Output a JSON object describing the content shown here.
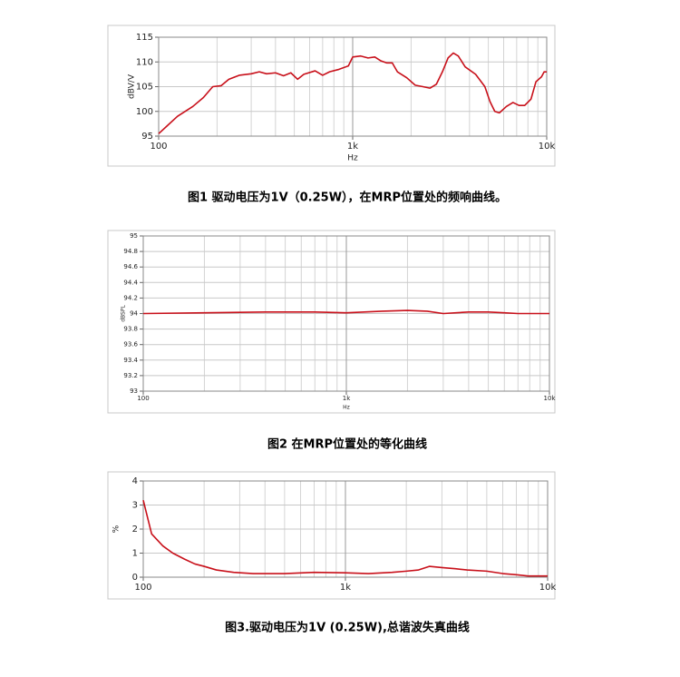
{
  "chart_data": [
    {
      "type": "line",
      "title": "图1 驱动电压为1V（0.25W），在MRP位置处的频响曲线。",
      "y_label": "dBV/V",
      "x_label": "Hz",
      "log_x": true,
      "grid": true,
      "color": "#c8101a",
      "x": [
        100,
        110,
        125,
        150,
        170,
        190,
        210,
        230,
        260,
        300,
        330,
        360,
        400,
        440,
        480,
        520,
        560,
        640,
        700,
        760,
        850,
        950,
        1000,
        1100,
        1200,
        1300,
        1400,
        1500,
        1600,
        1700,
        1900,
        2100,
        2300,
        2500,
        2700,
        2900,
        3100,
        3300,
        3500,
        3800,
        4300,
        4800,
        5100,
        5400,
        5700,
        6200,
        6700,
        7200,
        7700,
        8300,
        8800,
        9400,
        9700,
        10000
      ],
      "values": [
        95.5,
        97,
        99,
        101,
        102.8,
        105,
        105.2,
        106.5,
        107.3,
        107.6,
        108,
        107.6,
        107.8,
        107.2,
        107.8,
        106.5,
        107.5,
        108.2,
        107.3,
        108,
        108.5,
        109.2,
        111,
        111.2,
        110.8,
        111,
        110.2,
        109.8,
        109.8,
        108,
        106.8,
        105.3,
        105,
        104.7,
        105.5,
        108,
        110.8,
        111.8,
        111.2,
        109,
        107.5,
        105,
        102,
        100,
        99.7,
        101,
        101.8,
        101.2,
        101.2,
        102.5,
        106,
        107,
        108,
        108
      ],
      "xlim": [
        100,
        10000
      ],
      "xticks": [
        100,
        {
          "value": 1000,
          "label": "1k"
        },
        {
          "value": 10000,
          "label": "10k"
        }
      ],
      "ylim": [
        95,
        115
      ],
      "yticks": [
        95,
        100,
        105,
        110,
        115
      ]
    },
    {
      "type": "line",
      "title": "图2 在MRP位置处的等化曲线",
      "y_label": "dBSPL",
      "x_label": "Hz",
      "log_x": true,
      "grid": true,
      "color": "#c8101a",
      "x": [
        100,
        200,
        400,
        700,
        1000,
        1500,
        2000,
        2500,
        3000,
        4000,
        5000,
        6000,
        7000,
        10000
      ],
      "values": [
        94,
        94.01,
        94.02,
        94.02,
        94.01,
        94.03,
        94.04,
        94.03,
        94,
        94.02,
        94.02,
        94.01,
        94,
        94
      ],
      "xlim": [
        100,
        10000
      ],
      "xticks": [
        100,
        {
          "value": 1000,
          "label": "1k"
        },
        {
          "value": 10000,
          "label": "10k"
        }
      ],
      "ylim": [
        93,
        95
      ],
      "yticks": [
        93,
        93.2,
        93.4,
        93.6,
        93.8,
        94,
        94.2,
        94.4,
        94.6,
        94.8,
        95
      ]
    },
    {
      "type": "line",
      "title": "图3.驱动电压为1V (0.25W),总谐波失真曲线",
      "y_label": "%",
      "log_x": true,
      "grid": true,
      "color": "#c8101a",
      "x": [
        100,
        110,
        125,
        140,
        160,
        180,
        200,
        230,
        280,
        350,
        500,
        700,
        1000,
        1300,
        1700,
        2000,
        2300,
        2600,
        3000,
        3500,
        4000,
        5000,
        6000,
        7000,
        8000,
        10000
      ],
      "values": [
        3.2,
        1.8,
        1.3,
        1,
        0.75,
        0.55,
        0.45,
        0.3,
        0.2,
        0.15,
        0.15,
        0.2,
        0.18,
        0.15,
        0.2,
        0.25,
        0.3,
        0.45,
        0.4,
        0.35,
        0.3,
        0.25,
        0.15,
        0.1,
        0.05,
        0.05
      ],
      "xlim": [
        100,
        10000
      ],
      "xticks": [
        100,
        {
          "value": 1000,
          "label": "1k"
        },
        {
          "value": 10000,
          "label": "10k"
        }
      ],
      "ylim": [
        0,
        4
      ],
      "yticks": [
        0,
        1,
        2,
        3,
        4
      ]
    }
  ]
}
